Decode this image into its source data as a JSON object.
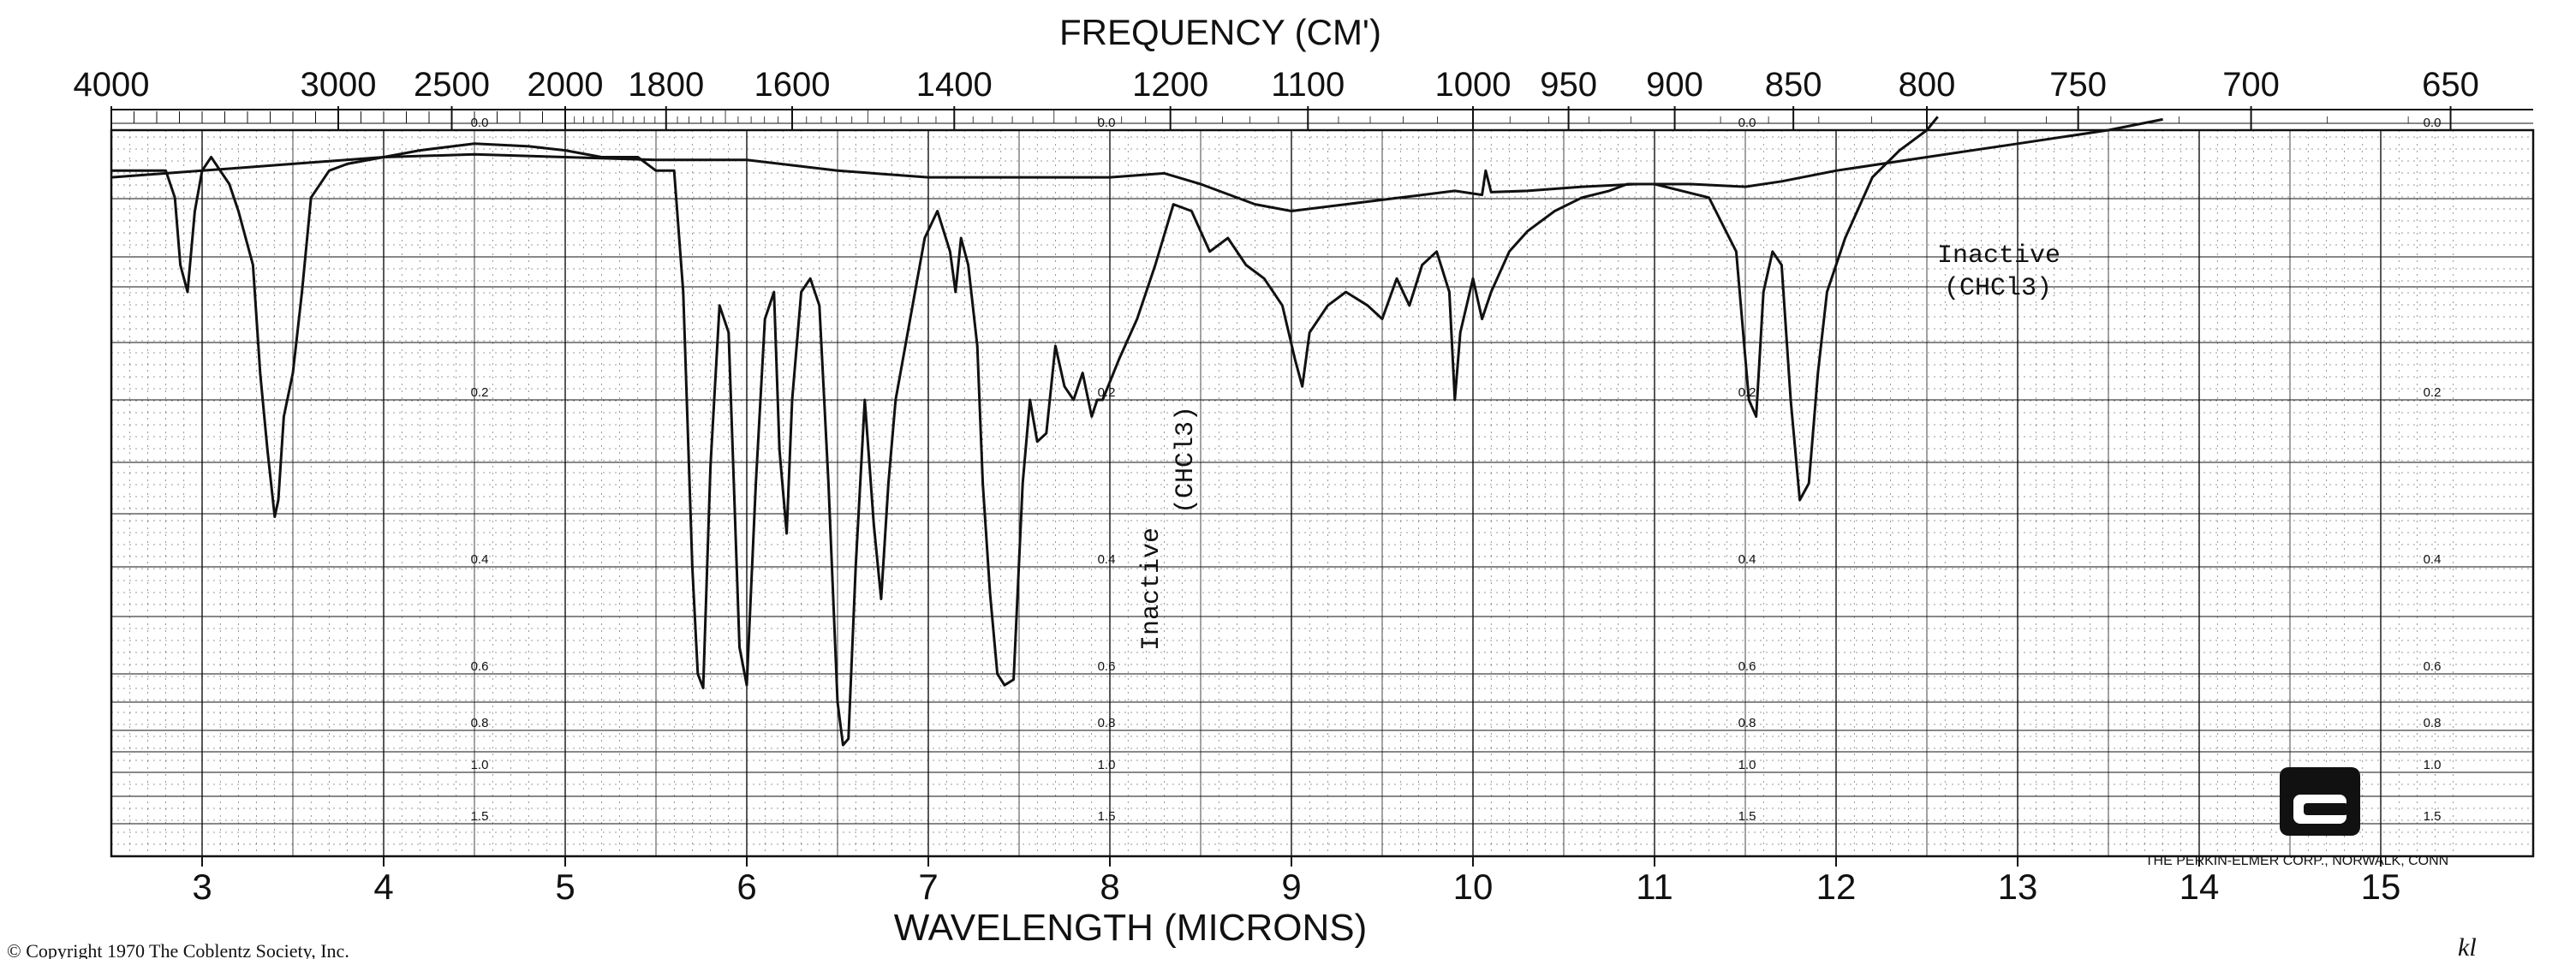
{
  "chart_data": {
    "type": "line",
    "title": "",
    "top_axis": {
      "label": "FREQUENCY (CM')",
      "ticks": [
        4000,
        3000,
        2500,
        2000,
        1800,
        1600,
        1400,
        1200,
        1100,
        1000,
        950,
        900,
        850,
        800,
        750,
        700,
        650
      ]
    },
    "bottom_axis": {
      "label": "WAVELENGTH (MICRONS)",
      "ticks": [
        3,
        4,
        5,
        6,
        7,
        8,
        9,
        10,
        11,
        12,
        13,
        14,
        15
      ],
      "xlim": [
        2.5,
        15.4
      ]
    },
    "absorbance_axis": {
      "ticks": [
        "0.0",
        "0.2",
        "0.4",
        "0.6",
        "0.8",
        "1.0",
        "1.5"
      ],
      "values": [
        0.0,
        0.2,
        0.4,
        0.6,
        0.8,
        1.0,
        1.5
      ]
    },
    "grid": true,
    "series": [
      {
        "values_note": "",
        "x": [
          2.5,
          2.8,
          2.85,
          2.88,
          2.92,
          2.96,
          3.0,
          3.05,
          3.1,
          3.15,
          3.2,
          3.28,
          3.32,
          3.36,
          3.4,
          3.42,
          3.45,
          3.5,
          3.55,
          3.6,
          3.7,
          3.8,
          4.0,
          4.2,
          4.5,
          4.8,
          5.0,
          5.2,
          5.4,
          5.5,
          5.6,
          5.65,
          5.7,
          5.73,
          5.76,
          5.8,
          5.85,
          5.9,
          5.96,
          6.0,
          6.05,
          6.1,
          6.15,
          6.18,
          6.22,
          6.25,
          6.3,
          6.35,
          6.4,
          6.45,
          6.5,
          6.53,
          6.56,
          6.6,
          6.65,
          6.7,
          6.74,
          6.78,
          6.82,
          6.9,
          6.98,
          7.05,
          7.12,
          7.15,
          7.18,
          7.22,
          7.27,
          7.3,
          7.34,
          7.38,
          7.42,
          7.47,
          7.52,
          7.56,
          7.6,
          7.65,
          7.7,
          7.75,
          7.8,
          7.85,
          7.9,
          7.93,
          7.96,
          8.05,
          8.15,
          8.25,
          8.35,
          8.45,
          8.55,
          8.65,
          8.75,
          8.85,
          8.95,
          9.02,
          9.06,
          9.1,
          9.2,
          9.3,
          9.42,
          9.5,
          9.58,
          9.65,
          9.72,
          9.8,
          9.87,
          9.9,
          9.93,
          10.0,
          10.05,
          10.1,
          10.2,
          10.3,
          10.45,
          10.6,
          10.75,
          10.85,
          11.0,
          11.15,
          11.3,
          11.45,
          11.52,
          11.56,
          11.6,
          11.65,
          11.7,
          11.75,
          11.8,
          11.85,
          11.9,
          11.95,
          12.05,
          12.2,
          12.35,
          12.5,
          12.56
        ],
        "y": [
          0.03,
          0.03,
          0.05,
          0.1,
          0.12,
          0.06,
          0.03,
          0.02,
          0.03,
          0.04,
          0.06,
          0.1,
          0.18,
          0.26,
          0.34,
          0.32,
          0.22,
          0.18,
          0.12,
          0.05,
          0.03,
          0.025,
          0.02,
          0.015,
          0.01,
          0.012,
          0.015,
          0.02,
          0.02,
          0.03,
          0.03,
          0.12,
          0.4,
          0.6,
          0.65,
          0.28,
          0.13,
          0.15,
          0.55,
          0.64,
          0.3,
          0.14,
          0.12,
          0.26,
          0.36,
          0.2,
          0.12,
          0.11,
          0.13,
          0.3,
          0.7,
          0.87,
          0.84,
          0.4,
          0.2,
          0.35,
          0.46,
          0.3,
          0.2,
          0.14,
          0.08,
          0.06,
          0.09,
          0.12,
          0.08,
          0.1,
          0.16,
          0.3,
          0.45,
          0.6,
          0.64,
          0.62,
          0.3,
          0.2,
          0.25,
          0.24,
          0.16,
          0.19,
          0.2,
          0.18,
          0.22,
          0.2,
          0.2,
          0.17,
          0.14,
          0.1,
          0.055,
          0.06,
          0.09,
          0.08,
          0.1,
          0.11,
          0.13,
          0.17,
          0.19,
          0.15,
          0.13,
          0.12,
          0.13,
          0.14,
          0.11,
          0.13,
          0.1,
          0.09,
          0.12,
          0.2,
          0.15,
          0.11,
          0.14,
          0.12,
          0.09,
          0.075,
          0.06,
          0.05,
          0.045,
          0.04,
          0.04,
          0.045,
          0.05,
          0.09,
          0.2,
          0.22,
          0.12,
          0.09,
          0.1,
          0.2,
          0.32,
          0.3,
          0.18,
          0.12,
          0.08,
          0.035,
          0.015,
          0.0,
          -0.01
        ]
      },
      {
        "values_note": "",
        "x": [
          2.5,
          3.0,
          3.5,
          4.0,
          4.5,
          5.0,
          5.5,
          6.0,
          6.5,
          7.0,
          7.5,
          8.0,
          8.3,
          8.5,
          8.8,
          9.0,
          9.3,
          9.6,
          9.9,
          10.05,
          10.07,
          10.1,
          10.3,
          10.6,
          10.9,
          11.2,
          11.5,
          11.7,
          12.0,
          12.5,
          13.0,
          13.5,
          13.8
        ],
        "y": [
          0.035,
          0.03,
          0.025,
          0.02,
          0.018,
          0.02,
          0.022,
          0.022,
          0.03,
          0.035,
          0.035,
          0.035,
          0.032,
          0.04,
          0.055,
          0.06,
          0.055,
          0.05,
          0.045,
          0.048,
          0.03,
          0.046,
          0.045,
          0.042,
          0.04,
          0.04,
          0.042,
          0.038,
          0.03,
          0.02,
          0.01,
          0.0,
          -0.008
        ]
      }
    ],
    "annotations": [
      {
        "text": "Inactive",
        "sub": "(CHCl3)"
      },
      {
        "text": "Inactive",
        "sub": "(CHCl3)"
      }
    ],
    "footer": {
      "manufacturer": "THE PERKIN-ELMER CORP., NORWALK, CONN",
      "copyright": "© Copyright 1970   The Coblentz Society, Inc.",
      "margin_note": "kl"
    },
    "colors": {
      "ink": "#111111",
      "grid": "#333333",
      "background": "#ffffff"
    }
  }
}
